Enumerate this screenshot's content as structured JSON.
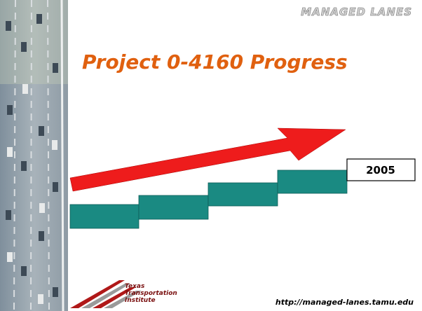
{
  "header": {
    "brand": "MANAGED LANES"
  },
  "title": "Project 0-4160 Progress",
  "milestone": {
    "label": "2005"
  },
  "footer": {
    "logo_lines": [
      "Texas",
      "Transportation",
      "Institute"
    ],
    "url": "http://managed-lanes.tamu.edu"
  }
}
